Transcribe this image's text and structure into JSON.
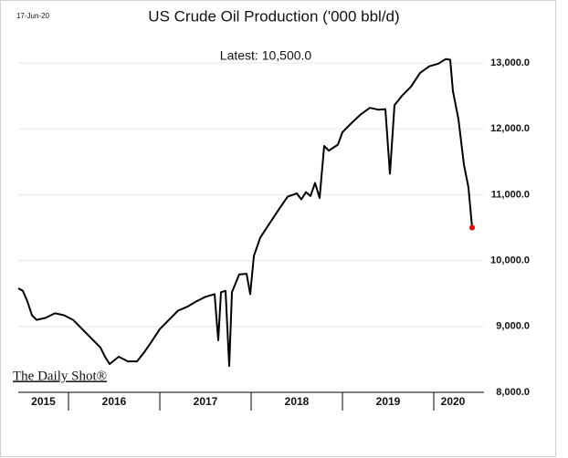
{
  "chart_data": {
    "type": "line",
    "title": "US Crude Oil Production ('000 bbl/d)",
    "date": "17-Jun-20",
    "annotation": "Latest:  10,500.0",
    "watermark": "The Daily Shot®",
    "categories": [
      "2015",
      "2016",
      "2017",
      "2018",
      "2019",
      "2020"
    ],
    "xticks": [
      2016,
      2017,
      2018,
      2019,
      2020
    ],
    "xlim": [
      2015.45,
      2020.42
    ],
    "ylim": [
      8000,
      13500
    ],
    "yticks": [
      {
        "value": 8000,
        "label": "8,000.0"
      },
      {
        "value": 9000,
        "label": "9,000.0"
      },
      {
        "value": 10000,
        "label": "10,000.0"
      },
      {
        "value": 11000,
        "label": "11,000.0"
      },
      {
        "value": 12000,
        "label": "12,000.0"
      },
      {
        "value": 13000,
        "label": "13,000.0"
      }
    ],
    "grid": true,
    "series": [
      {
        "name": "US Crude Oil Production",
        "color": "#000000",
        "x": [
          2015.45,
          2015.5,
          2015.55,
          2015.6,
          2015.65,
          2015.75,
          2015.85,
          2015.95,
          2016.05,
          2016.15,
          2016.25,
          2016.35,
          2016.4,
          2016.45,
          2016.55,
          2016.65,
          2016.75,
          2016.83,
          2016.9,
          2017.0,
          2017.1,
          2017.2,
          2017.3,
          2017.4,
          2017.5,
          2017.6,
          2017.64,
          2017.67,
          2017.72,
          2017.76,
          2017.79,
          2017.87,
          2017.95,
          2017.99,
          2018.03,
          2018.1,
          2018.2,
          2018.3,
          2018.4,
          2018.5,
          2018.55,
          2018.6,
          2018.65,
          2018.7,
          2018.75,
          2018.8,
          2018.85,
          2018.95,
          2019.0,
          2019.1,
          2019.2,
          2019.3,
          2019.4,
          2019.47,
          2019.52,
          2019.57,
          2019.65,
          2019.75,
          2019.85,
          2019.95,
          2020.05,
          2020.13,
          2020.18,
          2020.21,
          2020.27,
          2020.33,
          2020.38,
          2020.42
        ],
        "values": [
          9580,
          9540,
          9380,
          9170,
          9100,
          9130,
          9200,
          9170,
          9100,
          8960,
          8820,
          8680,
          8540,
          8430,
          8540,
          8470,
          8470,
          8610,
          8750,
          8960,
          9100,
          9240,
          9300,
          9380,
          9450,
          9490,
          8790,
          9520,
          9540,
          8400,
          9520,
          9790,
          9800,
          9490,
          10070,
          10350,
          10560,
          10770,
          10970,
          11020,
          10930,
          11040,
          10980,
          11180,
          10950,
          11740,
          11670,
          11760,
          11950,
          12090,
          12220,
          12320,
          12290,
          12300,
          11320,
          12360,
          12500,
          12640,
          12850,
          12950,
          12990,
          13060,
          13050,
          12570,
          12150,
          11460,
          11110,
          10500
        ]
      }
    ]
  }
}
